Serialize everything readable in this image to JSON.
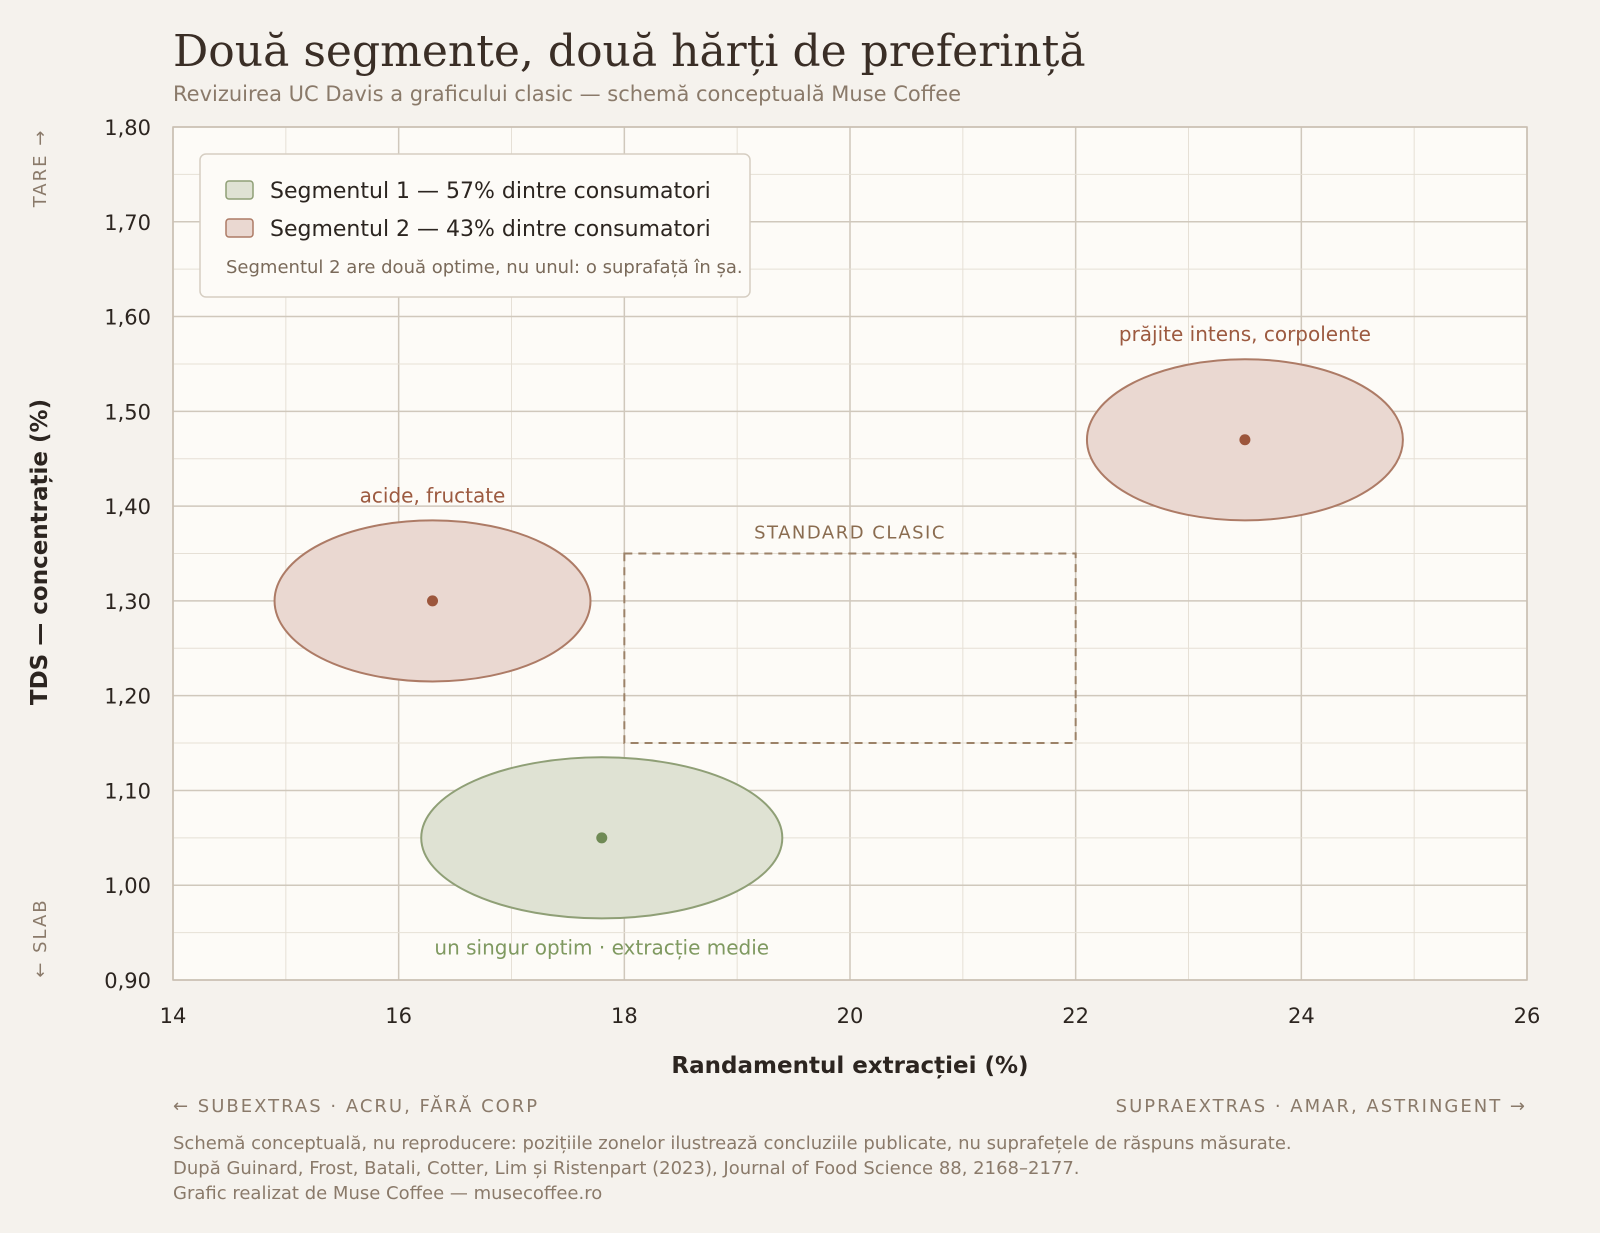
{
  "header": {
    "title": "Două segmente, două hărți de preferință",
    "subtitle": "Revizuirea UC Davis a graficului clasic — schemă conceptuală Muse Coffee"
  },
  "axes": {
    "x_title": "Randamentul extracției (%)",
    "y_title": "TDS — concentrație (%)",
    "x_left_note": "← SUBEXTRAS · ACRU, FĂRĂ CORP",
    "x_right_note": "SUPRAEXTRAS · AMAR, ASTRINGENT →",
    "y_top_note": "TARE →",
    "y_bottom_note": "← SLAB"
  },
  "legend": {
    "seg1": "Segmentul 1 — 57% dintre consumatori",
    "seg2": "Segmentul 2 — 43% dintre consumatori",
    "note": "Segmentul 2 are două optime, nu unul: o suprafață în șa."
  },
  "footer": {
    "line1": "Schemă conceptuală, nu reproducere: pozițiile zonelor ilustrează concluziile publicate, nu suprafețele de răspuns măsurate.",
    "line2": "După Guinard, Frost, Batali, Cotter, Lim și Ristenpart (2023), Journal of Food Science 88, 2168–2177.",
    "line3": "Grafic realizat de Muse Coffee — musecoffee.ro"
  },
  "colors": {
    "seg1_fill": "#dfe2d3",
    "seg1_stroke": "#8f9f76",
    "seg1_dot": "#6f8a55",
    "seg1_label": "#7f9960",
    "seg2_fill": "#ead8d1",
    "seg2_stroke": "#ad7b66",
    "seg2_dot": "#9c563c",
    "seg2_label": "#9c5a40",
    "standard_stroke": "#9c8268",
    "plot_bg": "#fdfbf7",
    "grid_major": "#d0c8bc",
    "grid_minor": "#e6e0d6"
  },
  "chart_data": {
    "type": "scatter",
    "xlim": [
      14,
      26
    ],
    "ylim": [
      0.9,
      1.8
    ],
    "x_ticks": [
      "14",
      "16",
      "18",
      "20",
      "22",
      "24",
      "26"
    ],
    "y_ticks": [
      "0,90",
      "1,00",
      "1,10",
      "1,20",
      "1,30",
      "1,40",
      "1,50",
      "1,60",
      "1,70",
      "1,80"
    ],
    "grid": true,
    "legend_position": "top-left",
    "zones": [
      {
        "segment": 1,
        "label": "un singur optim · extracție medie",
        "cx": 17.8,
        "cy": 1.05,
        "rx": 1.6,
        "ry": 0.085
      },
      {
        "segment": 2,
        "label": "acide, fructate",
        "cx": 16.3,
        "cy": 1.3,
        "rx": 1.4,
        "ry": 0.085
      },
      {
        "segment": 2,
        "label": "prăjite intens, corpolente",
        "cx": 23.5,
        "cy": 1.47,
        "rx": 1.4,
        "ry": 0.085
      }
    ],
    "standard_box": {
      "label": "STANDARD CLASIC",
      "x": [
        18,
        22
      ],
      "y": [
        1.15,
        1.35
      ]
    }
  }
}
